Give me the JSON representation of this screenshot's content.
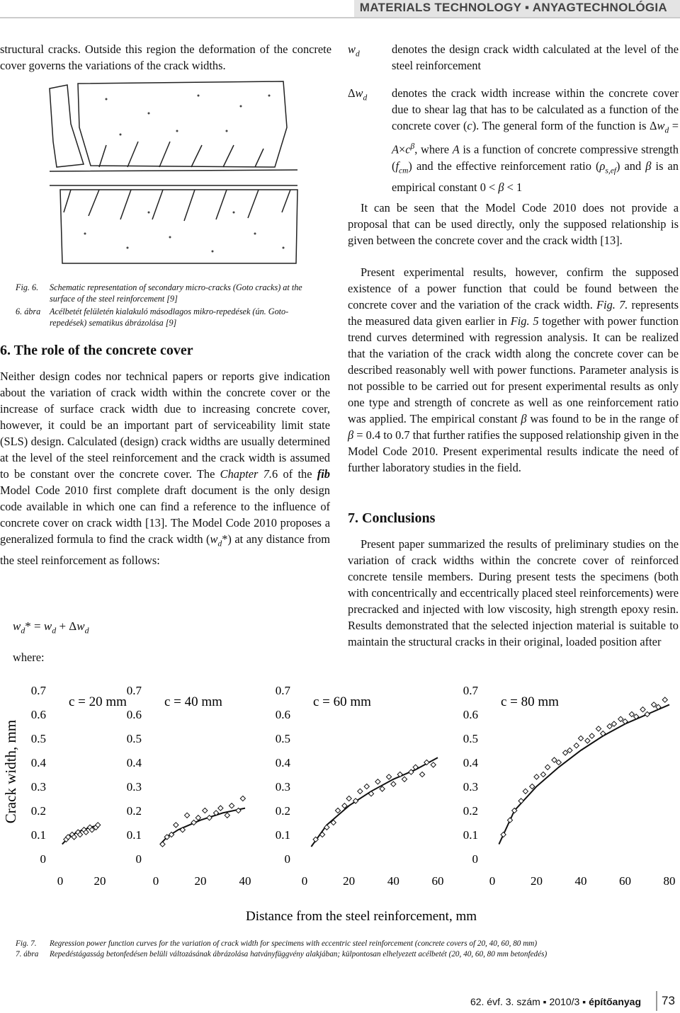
{
  "header": {
    "title": "MATERIALS TECHNOLOGY ▪ ANYAGTECHNOLÓGIA"
  },
  "left_column": {
    "intro": [
      "structural cracks. Outside this region the deformation of the concrete cover governs the variations of the crack widths."
    ],
    "figure6_caption": [
      {
        "label": "Fig. 6.",
        "text": "Schematic representation of secondary micro-cracks (Goto cracks) at the surface of the steel reinforcement [9]"
      },
      {
        "label": "6. ábra",
        "text": "Acélbetét felületén kialakuló másodlagos mikro-repedések (ún. Goto-repedések) sematikus ábrázolása [9]"
      }
    ],
    "heading": "6. The role of the concrete cover",
    "paragraph": [
      "Neither design codes nor technical papers or reports give indication about the variation of crack width within the concrete cover or the increase of surface crack width due to increasing concrete cover, however, it could be an important part of serviceability limit state (SLS) design. Calculated (design) crack widths are usually determined at the level of the steel reinforcement and the crack width is assumed to be constant over the concrete cover. The ",
      {
        "i": "Chapter 7."
      },
      "6 of the ",
      {
        "bi": "fib"
      },
      " Model Code 2010 first complete draft document is the only design code available in which one can find a reference to the influence of concrete cover on crack width [13]. The Model Code 2010 proposes a generalized formula to find the crack width (",
      {
        "i": "w"
      },
      {
        "sub": "d"
      },
      "*) at any distance from the steel reinforcement as follows:"
    ],
    "formula": [
      {
        "i": "w"
      },
      {
        "sub": "d"
      },
      "* = ",
      {
        "i": "w"
      },
      {
        "sub": "d"
      },
      " + Δ",
      {
        "i": "w"
      },
      {
        "sub": "d"
      }
    ],
    "where": [
      "where:"
    ]
  },
  "right_column": {
    "definitions": [
      {
        "term": [
          {
            "i": "w"
          },
          {
            "sub": "d"
          }
        ],
        "text": [
          "denotes the design crack width calculated at the level of the steel reinforcement"
        ]
      },
      {
        "term": [
          "Δ",
          {
            "i": "w"
          },
          {
            "sub": "d"
          }
        ],
        "text": [
          "denotes the crack width increase within the concrete cover due to shear lag that has to be calculated as a function of the concrete cover (",
          {
            "i": "c"
          },
          "). The general form of the function is Δ",
          {
            "i": "w"
          },
          {
            "sub": "d"
          },
          " = ",
          {
            "i": "A"
          },
          "×",
          {
            "i": "c"
          },
          {
            "sup": "β"
          },
          ", where ",
          {
            "i": "A"
          },
          " is a function of concrete compressive strength (",
          {
            "i": "f"
          },
          {
            "sub": "cm"
          },
          ") and the effective reinforcement ratio (",
          {
            "i": "ρ"
          },
          {
            "sub": "s,ef"
          },
          ") and ",
          {
            "i": "β"
          },
          " is an empirical constant 0 < ",
          {
            "i": "β"
          },
          " < 1"
        ]
      }
    ],
    "paragraph1": [
      "It can be seen that the Model Code 2010 does not provide a proposal that can be used directly, only the supposed relationship is given between the concrete cover and the crack width [13]."
    ],
    "paragraph2": [
      "Present experimental results, however, confirm the supposed existence of a power function that could be found between the concrete cover and the variation of the crack width. ",
      {
        "i": "Fig. 7."
      },
      " represents the measured data given earlier in ",
      {
        "i": "Fig. 5"
      },
      " together with power function trend curves determined with regression analysis. It can be realized that the variation of the crack width along the concrete cover can be described reasonably well with power functions. Parameter analysis is not possible to be carried out for present experimental results as only one type and strength of concrete as well as one reinforcement ratio was applied. The empirical constant ",
      {
        "i": "β"
      },
      " was found to be in the range of ",
      {
        "i": "β"
      },
      " = 0.4 to 0.7 that further ratifies the supposed relationship given in the Model Code 2010. Present experimental results indicate the need of further laboratory studies in the field."
    ],
    "heading": "7. Conclusions",
    "paragraph3": [
      "Present paper summarized the results of preliminary studies on the variation of crack widths within the concrete cover of reinforced concrete tensile members. During present tests the specimens (both with concentrically and eccentrically placed steel reinforcements) were precracked and injected with low viscosity, high strength epoxy resin. Results demonstrated that the selected injection material is suitable to maintain the structural cracks in their original, loaded position after"
    ]
  },
  "figure7": {
    "y_label": "Crack width, mm",
    "x_label": "Distance from the steel reinforcement, mm",
    "panels": [
      {
        "type": "scatter",
        "title": "c = 20 mm",
        "xlim": [
          0,
          20
        ],
        "ylim": [
          0,
          0.7
        ],
        "xticks": [
          0,
          20
        ],
        "yticks": [
          0,
          0.1,
          0.2,
          0.3,
          0.4,
          0.5,
          0.6,
          0.7
        ],
        "points": {
          "x": [
            3,
            4,
            6,
            7,
            9,
            10,
            12,
            13,
            15,
            16,
            18,
            19
          ],
          "values": [
            0.08,
            0.09,
            0.1,
            0.09,
            0.11,
            0.1,
            0.12,
            0.11,
            0.13,
            0.12,
            0.13,
            0.14
          ]
        },
        "trend": {
          "x": [
            1,
            5,
            10,
            15,
            20
          ],
          "values": [
            0.06,
            0.095,
            0.115,
            0.13,
            0.14
          ]
        }
      },
      {
        "type": "scatter",
        "title": "c = 40 mm",
        "xlim": [
          0,
          40
        ],
        "ylim": [
          0,
          0.7
        ],
        "xticks": [
          0,
          20,
          40
        ],
        "yticks": [
          0,
          0.1,
          0.2,
          0.3,
          0.4,
          0.5,
          0.6,
          0.7
        ],
        "points": {
          "x": [
            3,
            5,
            7,
            9,
            12,
            14,
            17,
            19,
            22,
            24,
            27,
            29,
            32,
            34,
            37,
            39
          ],
          "values": [
            0.06,
            0.09,
            0.1,
            0.14,
            0.12,
            0.18,
            0.15,
            0.17,
            0.2,
            0.17,
            0.19,
            0.21,
            0.18,
            0.22,
            0.2,
            0.25
          ]
        },
        "trend": {
          "x": [
            2,
            5,
            10,
            20,
            30,
            40
          ],
          "values": [
            0.06,
            0.09,
            0.12,
            0.16,
            0.19,
            0.21
          ]
        }
      },
      {
        "type": "scatter",
        "title": "c = 60 mm",
        "xlim": [
          0,
          60
        ],
        "ylim": [
          0,
          0.7
        ],
        "xticks": [
          0,
          20,
          40,
          60
        ],
        "yticks": [
          0,
          0.1,
          0.2,
          0.3,
          0.4,
          0.5,
          0.6,
          0.7
        ],
        "points": {
          "x": [
            5,
            8,
            10,
            13,
            15,
            18,
            20,
            23,
            25,
            28,
            30,
            33,
            35,
            38,
            40,
            43,
            45,
            48,
            50,
            53,
            55,
            58
          ],
          "values": [
            0.08,
            0.1,
            0.13,
            0.15,
            0.2,
            0.22,
            0.25,
            0.24,
            0.28,
            0.3,
            0.27,
            0.32,
            0.29,
            0.34,
            0.31,
            0.35,
            0.33,
            0.36,
            0.38,
            0.35,
            0.4,
            0.39
          ]
        },
        "trend": {
          "x": [
            3,
            10,
            20,
            30,
            40,
            50,
            60
          ],
          "values": [
            0.05,
            0.14,
            0.22,
            0.28,
            0.33,
            0.37,
            0.42
          ]
        }
      },
      {
        "type": "scatter",
        "title": "c = 80 mm",
        "xlim": [
          0,
          80
        ],
        "ylim": [
          0,
          0.7
        ],
        "xticks": [
          0,
          20,
          40,
          60,
          80
        ],
        "yticks": [
          0,
          0.1,
          0.2,
          0.3,
          0.4,
          0.5,
          0.6,
          0.7
        ],
        "points": {
          "x": [
            5,
            8,
            10,
            13,
            15,
            18,
            20,
            23,
            25,
            28,
            30,
            33,
            35,
            38,
            40,
            43,
            45,
            48,
            50,
            53,
            55,
            58,
            60,
            63,
            65,
            68,
            70,
            73,
            75,
            78
          ],
          "values": [
            0.1,
            0.16,
            0.2,
            0.24,
            0.28,
            0.3,
            0.34,
            0.35,
            0.38,
            0.41,
            0.4,
            0.44,
            0.45,
            0.47,
            0.5,
            0.49,
            0.51,
            0.54,
            0.52,
            0.55,
            0.56,
            0.58,
            0.57,
            0.6,
            0.59,
            0.62,
            0.6,
            0.64,
            0.63,
            0.66
          ]
        },
        "trend": {
          "x": [
            3,
            10,
            20,
            30,
            40,
            50,
            60,
            70,
            80
          ],
          "values": [
            0.06,
            0.2,
            0.3,
            0.38,
            0.45,
            0.51,
            0.56,
            0.6,
            0.64
          ]
        }
      }
    ],
    "caption": [
      {
        "label": "Fig. 7.",
        "text": "Regression power function curves for the variation of crack width for specimens with eccentric steel reinforcement (concrete covers of 20, 40, 60, 80 mm)"
      },
      {
        "label": "7. ábra",
        "text": "Repedéstágasság betonfedésen belüli változásának ábrázolása hatványfüggvény alakjában; külpontosan elhelyezett acélbetét (20, 40, 60, 80 mm betonfedés)"
      }
    ]
  },
  "footer": {
    "issue": "62. évf. 3. szám ▪ 2010/3 ▪",
    "journal": "építőanyag",
    "page": "73"
  }
}
